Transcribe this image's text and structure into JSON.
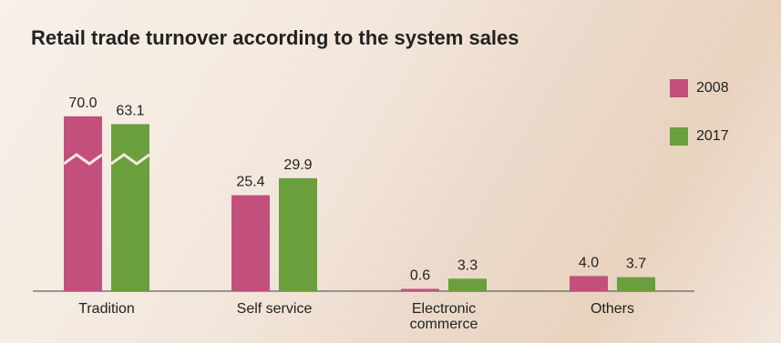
{
  "chart_data": {
    "type": "bar",
    "title": "Retail trade turnover according to the system sales",
    "categories": [
      "Tradition",
      "Self service",
      "Electronic commerce",
      "Others"
    ],
    "series": [
      {
        "name": "2008",
        "color": "#c24f7c",
        "values": [
          70.0,
          25.4,
          0.6,
          4.0
        ],
        "value_labels": [
          "70.0",
          "25.4",
          "0.6",
          "4.0"
        ]
      },
      {
        "name": "2017",
        "color": "#6b9e3c",
        "values": [
          63.1,
          29.9,
          3.3,
          3.7
        ],
        "value_labels": [
          "63.1",
          "29.9",
          "3.3",
          "3.7"
        ]
      }
    ],
    "broken_axis": true,
    "legend": "right"
  }
}
